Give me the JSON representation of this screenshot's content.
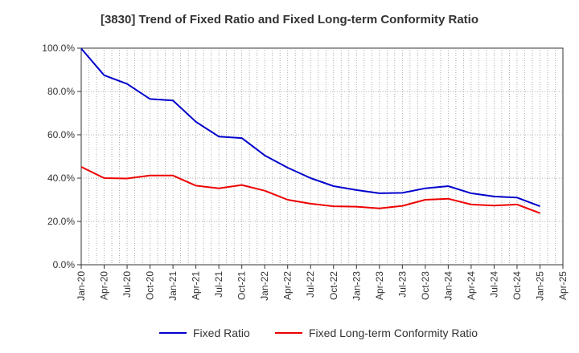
{
  "chart_data": {
    "type": "line",
    "title": "[3830]  Trend of Fixed Ratio and Fixed Long-term Conformity Ratio",
    "xlabel": "",
    "ylabel": "",
    "ylim": [
      0,
      100
    ],
    "y_ticks": [
      "0.0%",
      "20.0%",
      "40.0%",
      "60.0%",
      "80.0%",
      "100.0%"
    ],
    "y_tick_values": [
      0,
      20,
      40,
      60,
      80,
      100
    ],
    "x_tick_labels": [
      "Jan-20",
      "Apr-20",
      "Jul-20",
      "Oct-20",
      "Jan-21",
      "Apr-21",
      "Jul-21",
      "Oct-21",
      "Jan-22",
      "Apr-22",
      "Jul-22",
      "Oct-22",
      "Jan-23",
      "Apr-23",
      "Jul-23",
      "Oct-23",
      "Jan-24",
      "Apr-24",
      "Jul-24",
      "Oct-24",
      "Jan-25",
      "Apr-25"
    ],
    "x": [
      "Jan-20",
      "Apr-20",
      "Jul-20",
      "Oct-20",
      "Jan-21",
      "Apr-21",
      "Jul-21",
      "Oct-21",
      "Jan-22",
      "Apr-22",
      "Jul-22",
      "Oct-22",
      "Jan-23",
      "Apr-23",
      "Jul-23",
      "Oct-23",
      "Jan-24",
      "Apr-24",
      "Jul-24",
      "Oct-24",
      "Jan-25"
    ],
    "grid": true,
    "legend_position": "bottom",
    "series": [
      {
        "name": "Fixed Ratio",
        "color": "#0000cc",
        "values": [
          99.8,
          87.5,
          83.5,
          76.5,
          75.8,
          66.0,
          59.2,
          58.5,
          50.5,
          44.8,
          40.0,
          36.3,
          34.5,
          33.0,
          33.2,
          35.3,
          36.3,
          33.0,
          31.5,
          31.0,
          27.0
        ]
      },
      {
        "name": "Fixed Long-term Conformity Ratio",
        "color": "#ee0000",
        "values": [
          45.2,
          40.0,
          39.8,
          41.2,
          41.2,
          36.5,
          35.3,
          36.8,
          34.2,
          30.0,
          28.2,
          27.0,
          26.8,
          26.0,
          27.2,
          30.0,
          30.5,
          27.8,
          27.3,
          27.8,
          23.8
        ]
      }
    ]
  }
}
